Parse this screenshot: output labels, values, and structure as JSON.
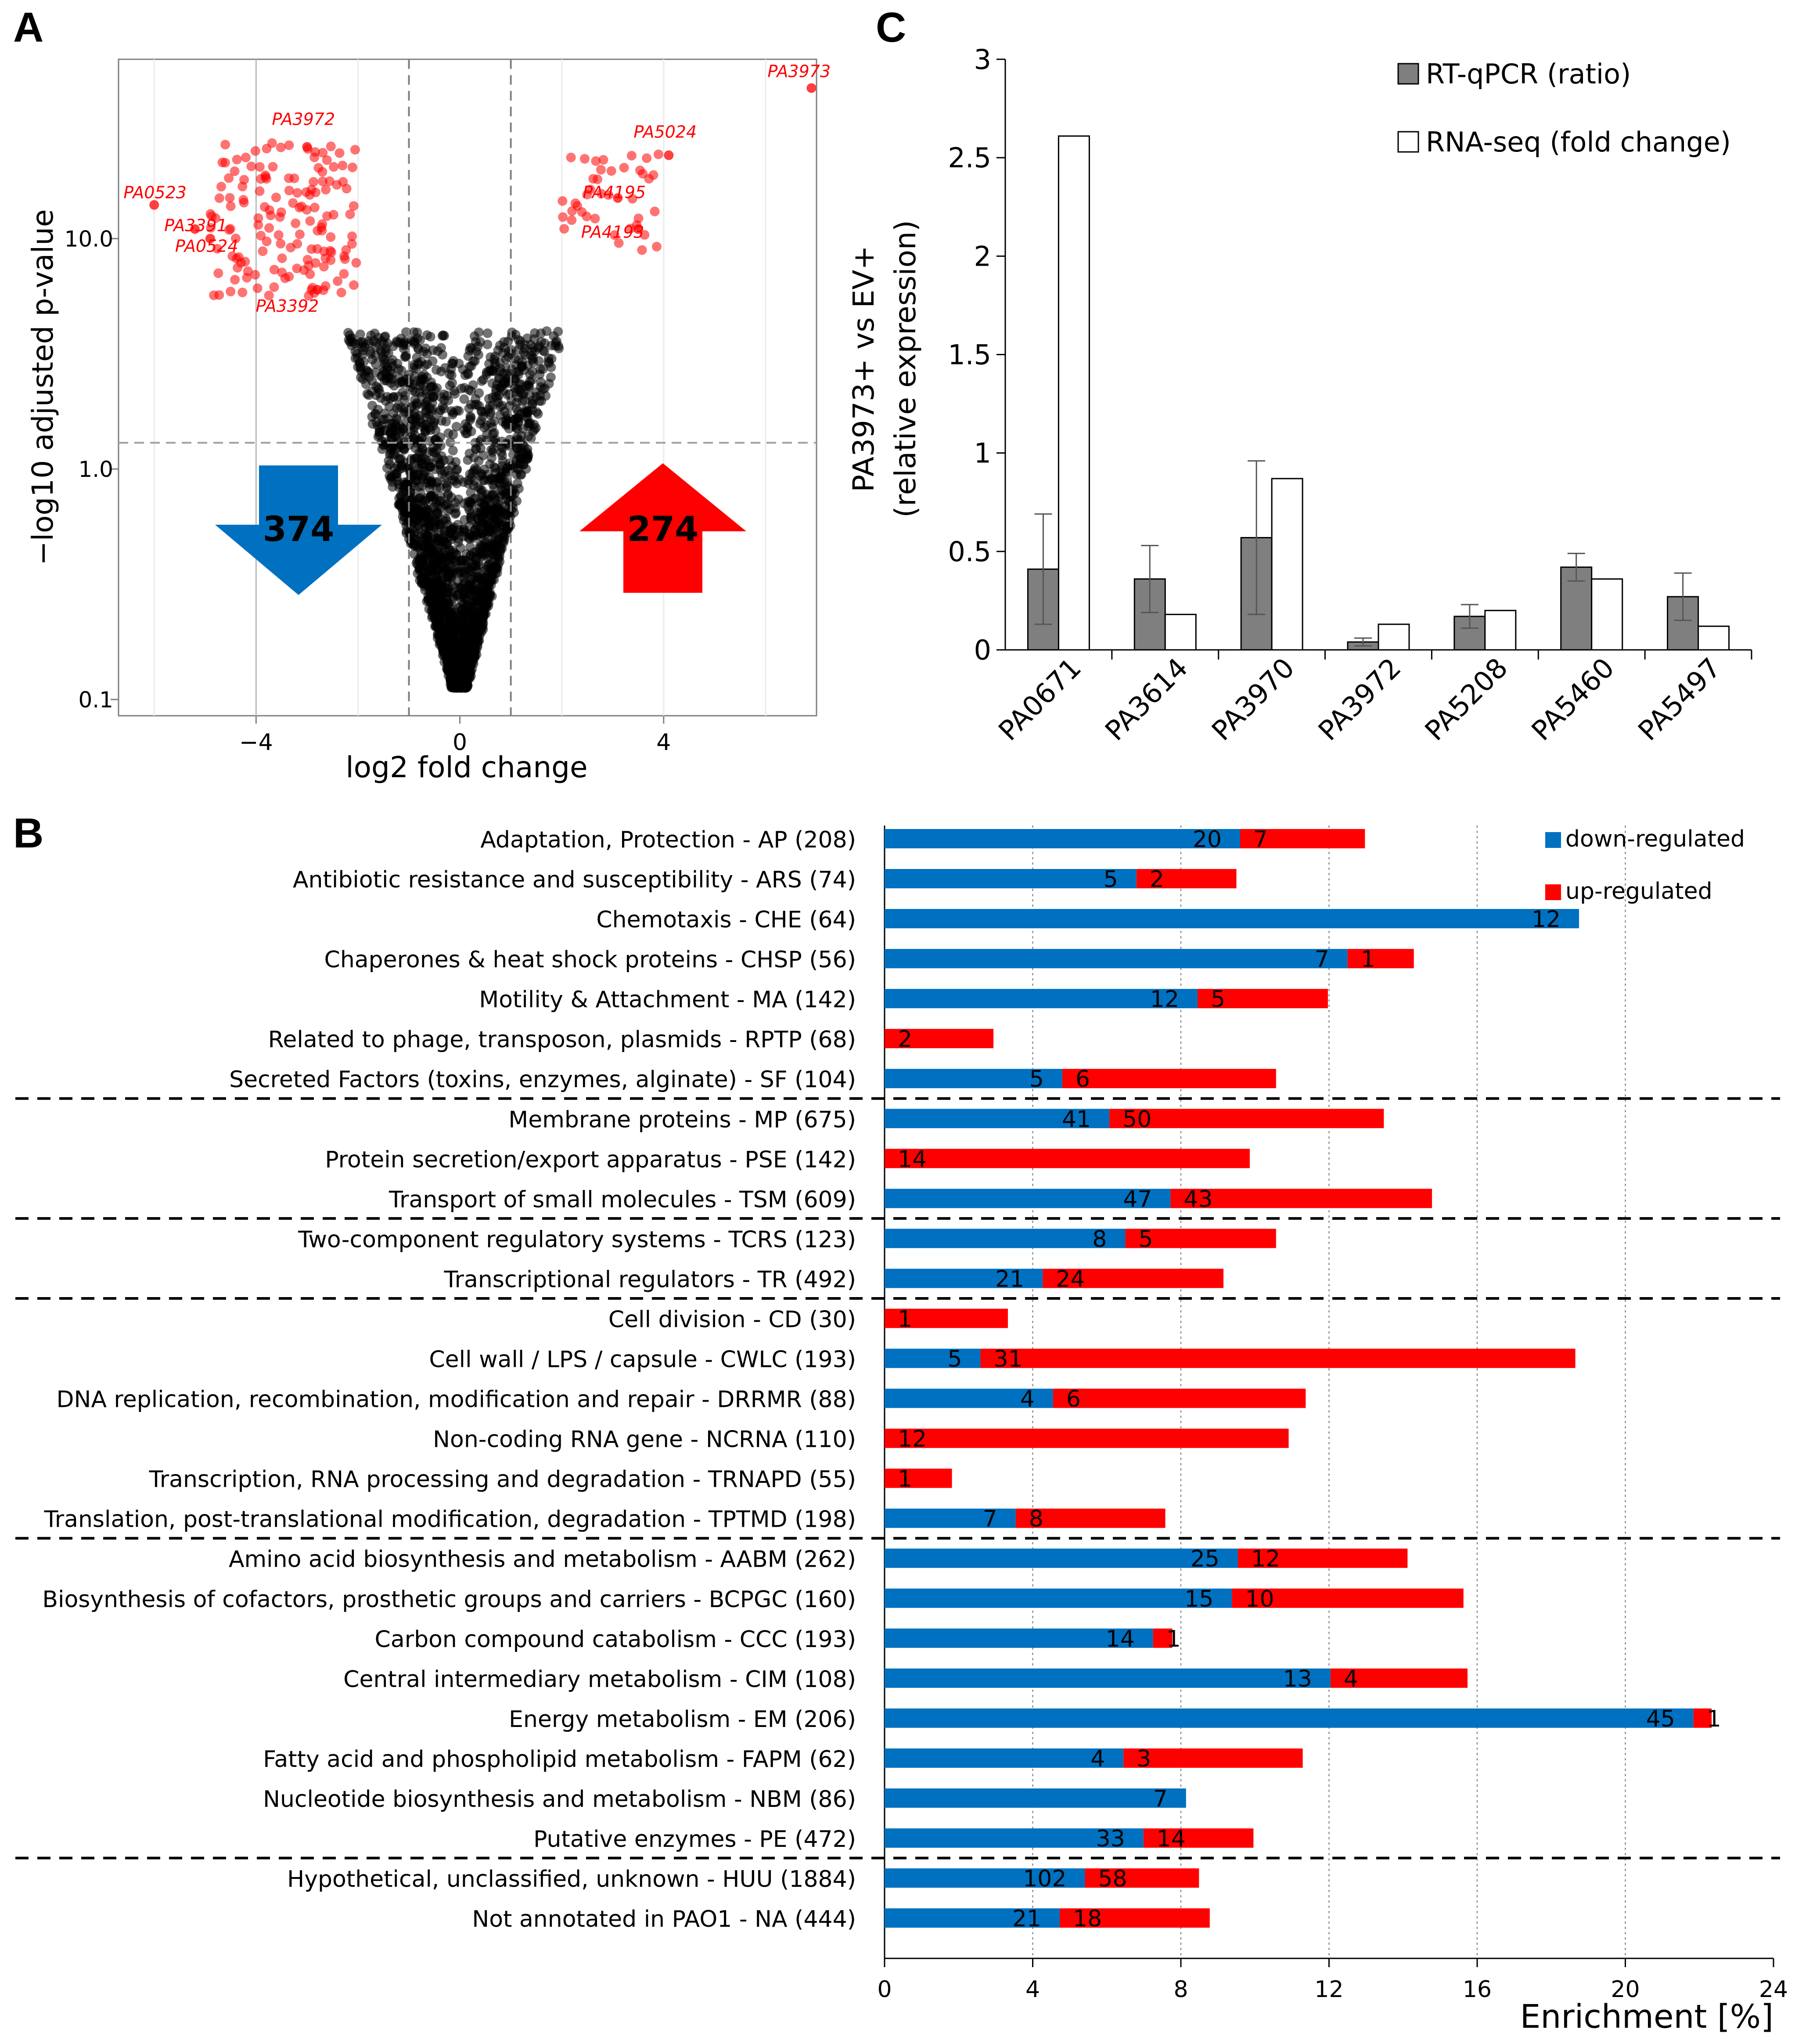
{
  "panels": {
    "a": {
      "letter": "A"
    },
    "b": {
      "letter": "B"
    },
    "c": {
      "letter": "C"
    }
  },
  "chart_data": [
    {
      "id": "volcano",
      "type": "scatter",
      "xlabel": "log2 fold change",
      "ylabel": "−log10 adjusted p-value",
      "x_ticks": [
        "−4",
        "0",
        "4"
      ],
      "x_tick_values": [
        -4,
        0,
        4
      ],
      "y_ticks": [
        "0.1",
        "1.0",
        "10.0"
      ],
      "y_tick_values": [
        0.1,
        1.0,
        10.0
      ],
      "xlim": [
        -6.7,
        7.0
      ],
      "y_scale": "log",
      "ylim": [
        0.085,
        60
      ],
      "threshold_x": [
        -1,
        1
      ],
      "threshold_y": 1.3,
      "down_count": "374",
      "up_count": "274",
      "colors": {
        "down_arrow": "#0070c0",
        "up_arrow": "#ff0000",
        "significant": "#ff0000",
        "nonsignificant": "#000000"
      },
      "labeled_points": [
        {
          "name": "PA3973",
          "x": 6.9,
          "y": 45
        },
        {
          "name": "PA3972",
          "x": -3.0,
          "y": 25
        },
        {
          "name": "PA5024",
          "x": 4.1,
          "y": 23
        },
        {
          "name": "PA4195",
          "x": 3.1,
          "y": 15
        },
        {
          "name": "PA4193",
          "x": 3.5,
          "y": 11
        },
        {
          "name": "PA0523",
          "x": -6.0,
          "y": 14
        },
        {
          "name": "PA3391",
          "x": -5.2,
          "y": 11
        },
        {
          "name": "PA0524",
          "x": -4.9,
          "y": 10
        },
        {
          "name": "PA3392",
          "x": -2.8,
          "y": 6.0
        }
      ]
    },
    {
      "id": "enrichment",
      "type": "bar",
      "orientation": "horizontal",
      "stacked": true,
      "xlabel": "Enrichment [%]",
      "xlim": [
        0,
        24
      ],
      "x_ticks": [
        "0",
        "4",
        "8",
        "12",
        "16",
        "20",
        "24"
      ],
      "x_tick_values": [
        0,
        4,
        8,
        12,
        16,
        20,
        24
      ],
      "grid": "vertical dotted",
      "legend": {
        "position": "top-right",
        "entries": [
          "down-regulated",
          "up-regulated"
        ]
      },
      "colors": {
        "down": "#0070c0",
        "up": "#ff0000"
      },
      "separators_after": [
        6,
        9,
        11,
        17,
        25
      ],
      "categories": [
        "Adaptation, Protection - AP (208)",
        "Antibiotic resistance and susceptibility - ARS (74)",
        "Chemotaxis - CHE (64)",
        "Chaperones & heat shock proteins - CHSP (56)",
        "Motility & Attachment - MA (142)",
        "Related to phage, transposon, plasmids - RPTP (68)",
        "Secreted Factors (toxins, enzymes, alginate) - SF (104)",
        "Membrane proteins - MP (675)",
        "Protein secretion/export apparatus - PSE (142)",
        "Transport of small molecules - TSM (609)",
        "Two-component regulatory systems - TCRS (123)",
        "Transcriptional regulators - TR (492)",
        "Cell division - CD (30)",
        "Cell wall / LPS / capsule - CWLC (193)",
        "DNA replication, recombination, modification and repair - DRRMR (88)",
        "Non-coding RNA gene - NCRNA (110)",
        "Transcription, RNA processing and degradation - TRNAPD (55)",
        "Translation, post-translational modification, degradation - TPTMD (198)",
        "Amino acid biosynthesis and metabolism - AABM (262)",
        "Biosynthesis of cofactors, prosthetic groups and carriers - BCPGC (160)",
        "Carbon compound catabolism - CCC (193)",
        "Central intermediary metabolism - CIM (108)",
        "Energy metabolism - EM (206)",
        "Fatty acid and phospholipid metabolism - FAPM (62)",
        "Nucleotide biosynthesis and metabolism - NBM (86)",
        "Putative enzymes - PE (472)",
        "Hypothetical, unclassified, unknown - HUU (1884)",
        "Not annotated in PAO1 - NA (444)"
      ],
      "series": [
        {
          "name": "down-regulated",
          "values": [
            9.6,
            6.8,
            18.75,
            12.5,
            8.45,
            0,
            4.8,
            6.07,
            0,
            7.72,
            6.5,
            4.27,
            0,
            2.59,
            4.55,
            0,
            0,
            3.54,
            9.54,
            9.38,
            7.25,
            12.04,
            21.84,
            6.45,
            8.14,
            6.99,
            5.41,
            4.73
          ],
          "labels": [
            "20",
            "5",
            "12",
            "7",
            "12",
            "",
            "5",
            "41",
            "",
            "47",
            "8",
            "21",
            "",
            "5",
            "4",
            "",
            "",
            "7",
            "25",
            "15",
            "14",
            "13",
            "45",
            "4",
            "7",
            "33",
            "102",
            "21"
          ]
        },
        {
          "name": "up-regulated",
          "values": [
            3.37,
            2.7,
            0,
            1.79,
            3.52,
            2.94,
            5.77,
            7.41,
            9.86,
            7.06,
            4.07,
            4.88,
            3.33,
            16.06,
            6.82,
            10.91,
            1.82,
            4.04,
            4.58,
            6.25,
            0.52,
            3.7,
            0.49,
            4.84,
            0,
            2.97,
            3.08,
            4.05
          ],
          "labels": [
            "7",
            "2",
            "",
            "1",
            "5",
            "2",
            "6",
            "50",
            "14",
            "43",
            "5",
            "24",
            "1",
            "31",
            "6",
            "12",
            "1",
            "8",
            "12",
            "10",
            "1",
            "4",
            "1",
            "3",
            "",
            "14",
            "58",
            "18"
          ]
        }
      ]
    },
    {
      "id": "validation",
      "type": "bar",
      "ylabel_line1": "PA3973+ vs EV+",
      "ylabel_line2": "(relative expression)",
      "ylim": [
        0,
        3
      ],
      "y_ticks": [
        "0",
        "0.5",
        "1",
        "1.5",
        "2",
        "2.5",
        "3"
      ],
      "y_tick_values": [
        0,
        0.5,
        1,
        1.5,
        2,
        2.5,
        3
      ],
      "categories": [
        "PA0671",
        "PA3614",
        "PA3970",
        "PA3972",
        "PA5208",
        "PA5460",
        "PA5497"
      ],
      "legend": {
        "position": "top-right",
        "entries": [
          "RT-qPCR (ratio)",
          "RNA-seq (fold change)"
        ]
      },
      "colors": {
        "rtqpcr": "#7f7f7f",
        "rnaseq": "#ffffff"
      },
      "series": [
        {
          "name": "RT-qPCR (ratio)",
          "values": [
            0.41,
            0.36,
            0.57,
            0.04,
            0.17,
            0.42,
            0.27
          ],
          "errors": [
            0.28,
            0.17,
            0.39,
            0.02,
            0.06,
            0.07,
            0.12
          ]
        },
        {
          "name": "RNA-seq (fold change)",
          "values": [
            2.61,
            0.18,
            0.87,
            0.13,
            0.2,
            0.36,
            0.12
          ]
        }
      ]
    }
  ]
}
